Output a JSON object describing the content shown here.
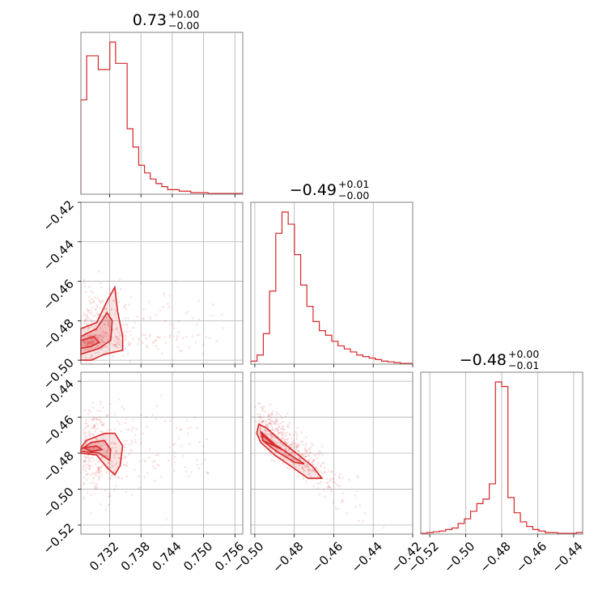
{
  "chart_data": {
    "type": "corner",
    "color": "#d62728",
    "parameters": [
      {
        "title_value": "0.73",
        "err_plus": "+0.00",
        "err_minus": "−0.00",
        "range": [
          0.7265,
          0.7575
        ]
      },
      {
        "title_value": "−0.49",
        "err_plus": "+0.01",
        "err_minus": "−0.00",
        "range": [
          -0.502,
          -0.42
        ]
      },
      {
        "title_value": "−0.48",
        "err_plus": "+0.00",
        "err_minus": "−0.01",
        "range": [
          -0.525,
          -0.435
        ]
      }
    ],
    "ticks": {
      "p0": {
        "values": [
          0.732,
          0.738,
          0.744,
          0.75,
          0.756
        ],
        "labels": [
          "0.732",
          "0.738",
          "0.744",
          "0.750",
          "0.756"
        ]
      },
      "p1": {
        "values": [
          -0.5,
          -0.48,
          -0.46,
          -0.44,
          -0.42
        ],
        "labels": [
          "−0.50",
          "−0.48",
          "−0.46",
          "−0.44",
          "−0.42"
        ]
      },
      "p1_left": {
        "values": [
          -0.42,
          -0.44,
          -0.46,
          -0.48,
          -0.5
        ],
        "labels": [
          "−0.42",
          "−0.44",
          "−0.46",
          "−0.48",
          "−0.50"
        ]
      },
      "p2": {
        "values": [
          -0.52,
          -0.5,
          -0.48,
          -0.46,
          -0.44
        ],
        "labels": [
          "−0.52",
          "−0.50",
          "−0.48",
          "−0.46",
          "−0.44"
        ]
      },
      "p2_left": {
        "values": [
          -0.44,
          -0.46,
          -0.48,
          -0.5,
          -0.52
        ],
        "labels": [
          "−0.44",
          "−0.46",
          "−0.48",
          "−0.50",
          "−0.52"
        ]
      }
    },
    "hist_p0": [
      0.62,
      0.91,
      0.91,
      0.82,
      0.82,
      1.0,
      0.86,
      0.86,
      0.43,
      0.31,
      0.19,
      0.14,
      0.1,
      0.07,
      0.05,
      0.03,
      0.03,
      0.02,
      0.02,
      0.01,
      0.01,
      0.01,
      0.005,
      0.005,
      0.005,
      0.005,
      0.005,
      0.005
    ],
    "hist_p1": [
      0.02,
      0.06,
      0.2,
      0.48,
      0.86,
      1.0,
      0.92,
      0.72,
      0.52,
      0.38,
      0.28,
      0.22,
      0.19,
      0.15,
      0.12,
      0.1,
      0.08,
      0.06,
      0.05,
      0.04,
      0.03,
      0.02,
      0.015,
      0.01,
      0.005,
      0.005
    ],
    "hist_p2": [
      0.005,
      0.01,
      0.015,
      0.02,
      0.03,
      0.04,
      0.07,
      0.1,
      0.15,
      0.2,
      0.23,
      0.33,
      1.0,
      0.97,
      0.24,
      0.14,
      0.08,
      0.05,
      0.03,
      0.02,
      0.01,
      0.01,
      0.005,
      0.005,
      0.005,
      0.01
    ]
  }
}
